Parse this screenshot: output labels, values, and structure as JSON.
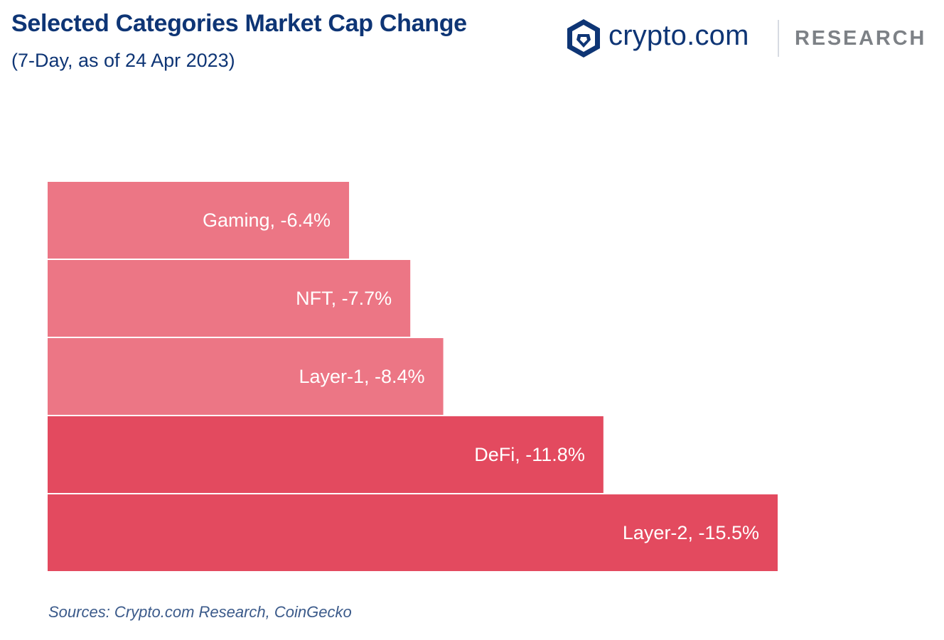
{
  "header": {
    "title": "Selected Categories Market Cap Change",
    "subtitle": "(7-Day, as of 24 Apr 2023)"
  },
  "brand": {
    "name": "crypto.com",
    "section": "RESEARCH",
    "color": "#0e3575"
  },
  "chart_data": {
    "type": "bar",
    "orientation": "horizontal",
    "title": "Selected Categories Market Cap Change",
    "subtitle": "(7-Day, as of 24 Apr 2023)",
    "xlabel": "",
    "ylabel": "",
    "grid": false,
    "legend": "none",
    "xlim": [
      0,
      15.5
    ],
    "categories": [
      "Gaming",
      "NFT",
      "Layer-1",
      "DeFi",
      "Layer-2"
    ],
    "values": [
      -6.4,
      -7.7,
      -8.4,
      -11.8,
      -15.5
    ],
    "labels": [
      "Gaming, -6.4%",
      "NFT, -7.7%",
      "Layer-1, -8.4%",
      "DeFi, -11.8%",
      "Layer-2, -15.5%"
    ],
    "colors": [
      "#ec7685",
      "#ec7685",
      "#ec7685",
      "#e34a5f",
      "#e34a5f"
    ]
  },
  "footer": {
    "source": "Sources: Crypto.com Research, CoinGecko"
  }
}
